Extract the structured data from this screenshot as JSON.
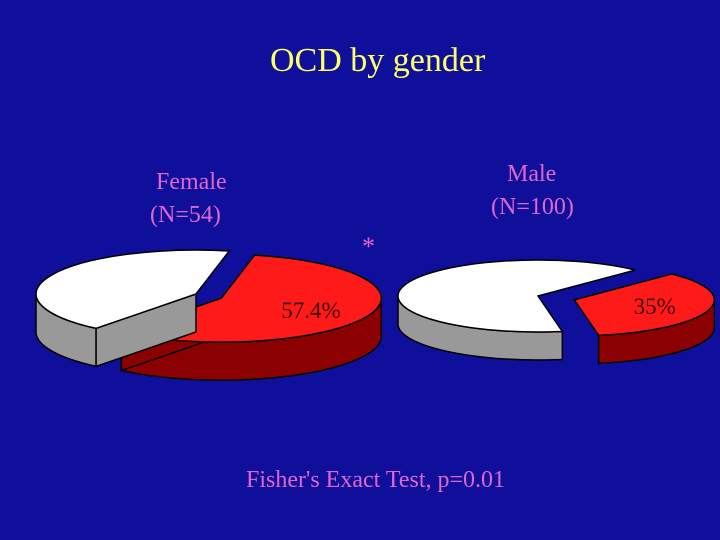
{
  "chart_data": {
    "type": "pie",
    "title": "OCD by gender",
    "pies": [
      {
        "name": "Female",
        "n_label": "(N=54)",
        "slices": [
          {
            "value": 57.4,
            "label": "57.4%",
            "color": "#ff1a1a",
            "side_color": "#8b0000",
            "exploded": true
          },
          {
            "value": 42.6,
            "label": "",
            "color": "#ffffff",
            "side_color": "#999999",
            "exploded": false
          }
        ]
      },
      {
        "name": "Male",
        "n_label": "(N=100)",
        "slices": [
          {
            "value": 35,
            "label": "35%",
            "color": "#ff1a1a",
            "side_color": "#8b0000",
            "exploded": true
          },
          {
            "value": 65,
            "label": "",
            "color": "#ffffff",
            "side_color": "#999999",
            "exploded": false
          }
        ]
      }
    ],
    "significance_marker": "*",
    "annotation": "Fisher's Exact Test, p=0.01"
  },
  "colors": {
    "background": "#0f0f9b",
    "title": "#ffff66",
    "labels": "#e066cc"
  }
}
